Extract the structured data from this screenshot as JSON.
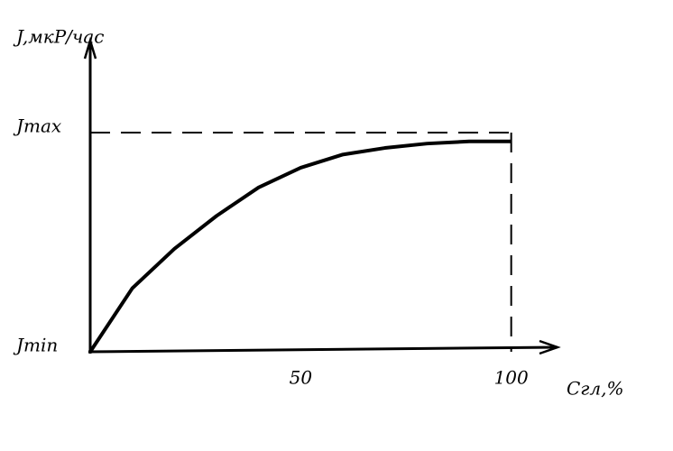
{
  "chart_data": {
    "type": "line",
    "ylabel": "J,мкР/час",
    "xlabel": "Cгл,%",
    "x": [
      0,
      10,
      20,
      30,
      40,
      50,
      60,
      70,
      80,
      90,
      100
    ],
    "series": [
      {
        "color": "#000000",
        "values": [
          0,
          0.29,
          0.47,
          0.62,
          0.75,
          0.84,
          0.9,
          0.93,
          0.95,
          0.96,
          0.96
        ]
      }
    ],
    "xlim": [
      0,
      111
    ],
    "ylim": [
      0,
      1.42
    ],
    "xticks": [
      50,
      100
    ],
    "yticks": [
      {
        "value": 0,
        "label": "Jmin"
      },
      {
        "value": 1,
        "label": "Jmax"
      }
    ],
    "grid": false
  }
}
